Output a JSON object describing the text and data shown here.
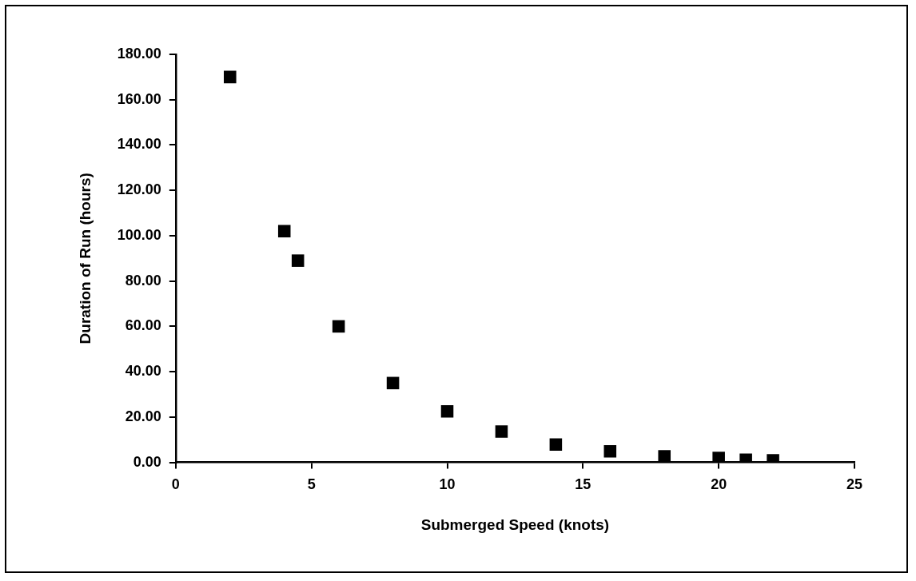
{
  "chart_data": {
    "type": "scatter",
    "xlabel": "Submerged Speed (knots)",
    "ylabel": "Duration of Run (hours)",
    "x": [
      2,
      4,
      4.5,
      6,
      8,
      10,
      12,
      14,
      16,
      18,
      20,
      21,
      22
    ],
    "series": [
      {
        "color": "#000000",
        "values": [
          170,
          102,
          89,
          60,
          35,
          22.5,
          13.6,
          7.9,
          4.9,
          2.7,
          2.0,
          1.2,
          0.9
        ]
      }
    ],
    "xlim": [
      0,
      25
    ],
    "xticks": [
      0,
      5,
      10,
      15,
      20,
      25
    ],
    "ylim": [
      0,
      180
    ],
    "yticks": [
      {
        "value": 0,
        "label": "0.00"
      },
      {
        "value": 20,
        "label": "20.00"
      },
      {
        "value": 40,
        "label": "40.00"
      },
      {
        "value": 60,
        "label": "60.00"
      },
      {
        "value": 80,
        "label": "80.00"
      },
      {
        "value": 100,
        "label": "100.00"
      },
      {
        "value": 120,
        "label": "120.00"
      },
      {
        "value": 140,
        "label": "140.00"
      },
      {
        "value": 160,
        "label": "160.00"
      },
      {
        "value": 180,
        "label": "180.00"
      }
    ],
    "grid": false,
    "legend": false,
    "marker": "square"
  }
}
